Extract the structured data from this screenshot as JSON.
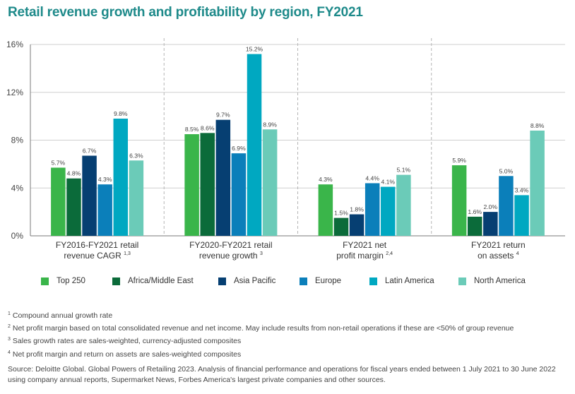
{
  "title": "Retail revenue growth and profitability by region, FY2021",
  "colors": {
    "Top 250": "#3ab54a",
    "Africa/Middle East": "#0b6b3a",
    "Asia Pacific": "#063f72",
    "Europe": "#0b7fba",
    "Latin America": "#00a8c1",
    "North America": "#6bcbb8"
  },
  "chart_data": {
    "type": "bar",
    "ylim": [
      0,
      16
    ],
    "yticks": [
      "0%",
      "4%",
      "8%",
      "12%",
      "16%"
    ],
    "ytick_values": [
      0,
      4,
      8,
      12,
      16
    ],
    "categories": [
      {
        "lines": [
          "FY2016-FY2021 retail",
          "revenue CAGR"
        ],
        "sup": "1,3"
      },
      {
        "lines": [
          "FY2020-FY2021 retail",
          "revenue growth"
        ],
        "sup": "3"
      },
      {
        "lines": [
          "FY2021 net",
          "profit margin"
        ],
        "sup": "2,4"
      },
      {
        "lines": [
          "FY2021 return",
          "on assets"
        ],
        "sup": "4"
      }
    ],
    "series": [
      {
        "name": "Top 250",
        "values": [
          5.7,
          8.5,
          4.3,
          5.9
        ],
        "labels": [
          "5.7%",
          "8.5%",
          "4.3%",
          "5.9%"
        ]
      },
      {
        "name": "Africa/Middle East",
        "values": [
          4.8,
          8.6,
          1.5,
          1.6
        ],
        "labels": [
          "4.8%",
          "8.6%",
          "1.5%",
          "1.6%"
        ]
      },
      {
        "name": "Asia Pacific",
        "values": [
          6.7,
          9.7,
          1.8,
          2.0
        ],
        "labels": [
          "6.7%",
          "9.7%",
          "1.8%",
          "2.0%"
        ]
      },
      {
        "name": "Europe",
        "values": [
          4.3,
          6.9,
          4.4,
          5.0
        ],
        "labels": [
          "4.3%",
          "6.9%",
          "4.4%",
          "5.0%"
        ]
      },
      {
        "name": "Latin America",
        "values": [
          9.8,
          15.2,
          4.1,
          3.4
        ],
        "labels": [
          "9.8%",
          "15.2%",
          "4.1%",
          "3.4%"
        ]
      },
      {
        "name": "North America",
        "values": [
          6.3,
          8.9,
          5.1,
          8.8
        ],
        "labels": [
          "6.3%",
          "8.9%",
          "5.1%",
          "8.8%"
        ]
      }
    ],
    "grid": true,
    "legend": "bottom"
  },
  "legend": [
    {
      "label": "Top 250",
      "color": "#3ab54a"
    },
    {
      "label": "Africa/Middle East",
      "color": "#0b6b3a"
    },
    {
      "label": "Asia Pacific",
      "color": "#063f72"
    },
    {
      "label": "Europe",
      "color": "#0b7fba"
    },
    {
      "label": "Latin America",
      "color": "#00a8c1"
    },
    {
      "label": "North America",
      "color": "#6bcbb8"
    }
  ],
  "footnotes": [
    {
      "mark": "1",
      "text": "Compound annual growth rate"
    },
    {
      "mark": "2",
      "text": "Net profit margin based on total consolidated revenue and net income. May include results from non-retail operations if these are <50% of group revenue"
    },
    {
      "mark": "3",
      "text": "Sales growth rates are sales-weighted, currency-adjusted composites"
    },
    {
      "mark": "4",
      "text": "Net profit margin and return on assets are sales-weighted composites"
    }
  ],
  "source": "Source: Deloitte Global. Global Powers of Retailing 2023. Analysis of financial performance and operations for fiscal years ended between 1 July 2021 to 30 June 2022 using company annual reports, Supermarket News, Forbes America's largest private companies and other sources."
}
